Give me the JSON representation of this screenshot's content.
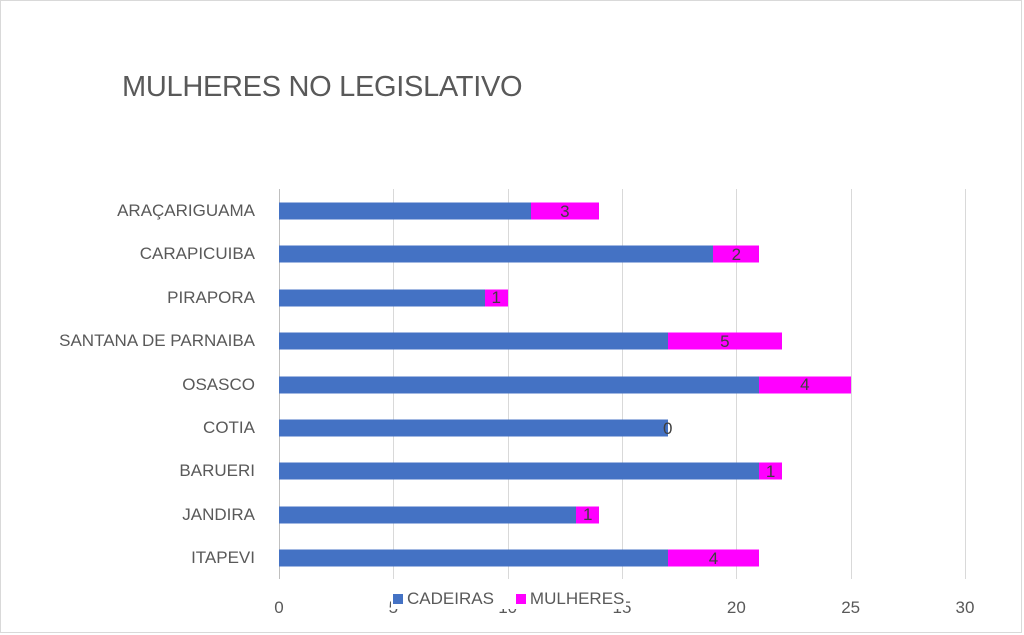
{
  "chart_data": {
    "type": "bar",
    "orientation": "horizontal",
    "stacked": true,
    "title": "MULHERES NO LEGISLATIVO",
    "xlabel": "",
    "ylabel": "",
    "xlim": [
      0,
      30
    ],
    "x_ticks": [
      "0",
      "5",
      "10",
      "15",
      "20",
      "25",
      "30"
    ],
    "grid": true,
    "legend_position": "bottom",
    "categories": [
      "ARAÇARIGUAMA",
      "CARAPICUIBA",
      "PIRAPORA",
      "SANTANA DE PARNAIBA",
      "OSASCO",
      "COTIA",
      "BARUERI",
      "JANDIRA",
      "ITAPEVI"
    ],
    "series": [
      {
        "name": "CADEIRAS",
        "color": "#4472c4",
        "values": [
          11,
          19,
          9,
          17,
          21,
          17,
          21,
          13,
          17
        ],
        "data_labels": false
      },
      {
        "name": "MULHERES",
        "color": "#ff00ff",
        "values": [
          3,
          2,
          1,
          5,
          4,
          0,
          1,
          1,
          4
        ],
        "data_labels": true
      }
    ]
  },
  "title": "MULHERES NO LEGISLATIVO",
  "legend": {
    "cadeiras": "CADEIRAS",
    "mulheres": "MULHERES"
  },
  "ticks": [
    "0",
    "5",
    "10",
    "15",
    "20",
    "25",
    "30"
  ],
  "rows": [
    {
      "label": "ARAÇARIGUAMA",
      "cadeiras": 11,
      "mulheres": 3,
      "mulheres_label": "3"
    },
    {
      "label": "CARAPICUIBA",
      "cadeiras": 19,
      "mulheres": 2,
      "mulheres_label": "2"
    },
    {
      "label": "PIRAPORA",
      "cadeiras": 9,
      "mulheres": 1,
      "mulheres_label": "1"
    },
    {
      "label": "SANTANA DE PARNAIBA",
      "cadeiras": 17,
      "mulheres": 5,
      "mulheres_label": "5"
    },
    {
      "label": "OSASCO",
      "cadeiras": 21,
      "mulheres": 4,
      "mulheres_label": "4"
    },
    {
      "label": "COTIA",
      "cadeiras": 17,
      "mulheres": 0,
      "mulheres_label": "0"
    },
    {
      "label": "BARUERI",
      "cadeiras": 21,
      "mulheres": 1,
      "mulheres_label": "1"
    },
    {
      "label": "JANDIRA",
      "cadeiras": 13,
      "mulheres": 1,
      "mulheres_label": "1"
    },
    {
      "label": "ITAPEVI",
      "cadeiras": 17,
      "mulheres": 4,
      "mulheres_label": "4"
    }
  ]
}
